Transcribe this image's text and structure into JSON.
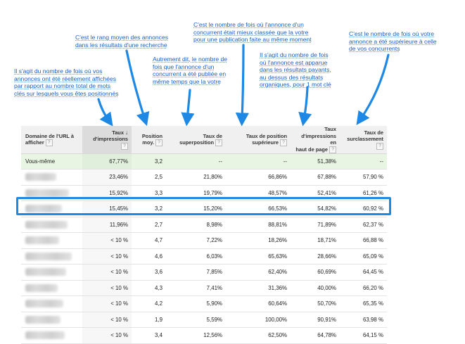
{
  "annotations": {
    "impressions_share": [
      "Il s'agit du nombre de fois où vos",
      "annonces ont été réellement affichées",
      "par rapport au nombre total de mots",
      "clés sur lesquels vous êtes positionnés"
    ],
    "avg_position": [
      "C'est le rang moyen des annonces",
      "dans les résultats d'une recherche"
    ],
    "overlap": [
      "Autrement dit, le nombre de",
      "fois que l'annonce d'un",
      "concurrent a été publiée en",
      "même temps que la votre"
    ],
    "position_above": [
      "C'est le nombre de fois où l'annonce d'un",
      "concurrent était mieux classée que la votre",
      "pour une publication faite au même moment"
    ],
    "top_of_page": [
      "Il s'agit du nombre de fois",
      "où l'annonce est apparue",
      "dans les résultats payants,",
      "au dessus des résultats",
      "organiques, pour 1 mot clé"
    ],
    "outranking": [
      "C'est le nombre de fois où votre",
      "annonce a été supérieure à celle",
      "de vos concurrents"
    ]
  },
  "table": {
    "headers": {
      "domain": [
        "Domaine de l'URL à",
        "afficher"
      ],
      "impr_share": [
        "Taux",
        "d'impressions"
      ],
      "avg_position": [
        "Position",
        "moy."
      ],
      "overlap_rate": [
        "Taux de",
        "superposition"
      ],
      "position_above_rate": [
        "Taux de position",
        "supérieure"
      ],
      "top_of_page_rate": [
        "Taux d'impressions en",
        "haut de page"
      ],
      "outranking_share": [
        "Taux de",
        "surclassement"
      ]
    },
    "help_glyph": "?",
    "sort_glyph": "↓",
    "self_row": {
      "domain": "Vous-même",
      "impr_share": "67,77%",
      "avg_position": "3,2",
      "overlap_rate": "--",
      "position_above_rate": "--",
      "top_of_page_rate": "51,38%",
      "outranking_share": "--"
    },
    "rows": [
      {
        "impr_share": "23,46%",
        "avg_position": "2,5",
        "overlap_rate": "21,80%",
        "position_above_rate": "66,86%",
        "top_of_page_rate": "67,88%",
        "outranking_share": "57,90 %"
      },
      {
        "impr_share": "15,92%",
        "avg_position": "3,3",
        "overlap_rate": "19,79%",
        "position_above_rate": "48,57%",
        "top_of_page_rate": "52,41%",
        "outranking_share": "61,26 %"
      },
      {
        "impr_share": "15,45%",
        "avg_position": "3,2",
        "overlap_rate": "15,20%",
        "position_above_rate": "66,53%",
        "top_of_page_rate": "54,82%",
        "outranking_share": "60,92 %"
      },
      {
        "impr_share": "11,96%",
        "avg_position": "2,7",
        "overlap_rate": "8,98%",
        "position_above_rate": "88,81%",
        "top_of_page_rate": "71,89%",
        "outranking_share": "62,37 %"
      },
      {
        "impr_share": "< 10 %",
        "avg_position": "4,7",
        "overlap_rate": "7,22%",
        "position_above_rate": "18,26%",
        "top_of_page_rate": "18,71%",
        "outranking_share": "66,88 %"
      },
      {
        "impr_share": "< 10 %",
        "avg_position": "4,6",
        "overlap_rate": "6,03%",
        "position_above_rate": "65,63%",
        "top_of_page_rate": "28,66%",
        "outranking_share": "65,09 %"
      },
      {
        "impr_share": "< 10 %",
        "avg_position": "3,6",
        "overlap_rate": "7,85%",
        "position_above_rate": "62,40%",
        "top_of_page_rate": "60,69%",
        "outranking_share": "64,45 %"
      },
      {
        "impr_share": "< 10 %",
        "avg_position": "4,3",
        "overlap_rate": "7,41%",
        "position_above_rate": "31,36%",
        "top_of_page_rate": "40,00%",
        "outranking_share": "66,20 %"
      },
      {
        "impr_share": "< 10 %",
        "avg_position": "4,2",
        "overlap_rate": "5,90%",
        "position_above_rate": "60,64%",
        "top_of_page_rate": "50,70%",
        "outranking_share": "65,35 %"
      },
      {
        "impr_share": "< 10 %",
        "avg_position": "1,9",
        "overlap_rate": "5,59%",
        "position_above_rate": "100,00%",
        "top_of_page_rate": "90,91%",
        "outranking_share": "63,98 %"
      },
      {
        "impr_share": "< 10 %",
        "avg_position": "3,4",
        "overlap_rate": "12,56%",
        "position_above_rate": "62,50%",
        "top_of_page_rate": "64,78%",
        "outranking_share": "64,15 %"
      }
    ]
  },
  "colors": {
    "annotation_text": "#1a5fc9",
    "arrow": "#1e88e5",
    "self_row_bg": "#e8f5e2",
    "header_bg": "#f0f0f0"
  }
}
